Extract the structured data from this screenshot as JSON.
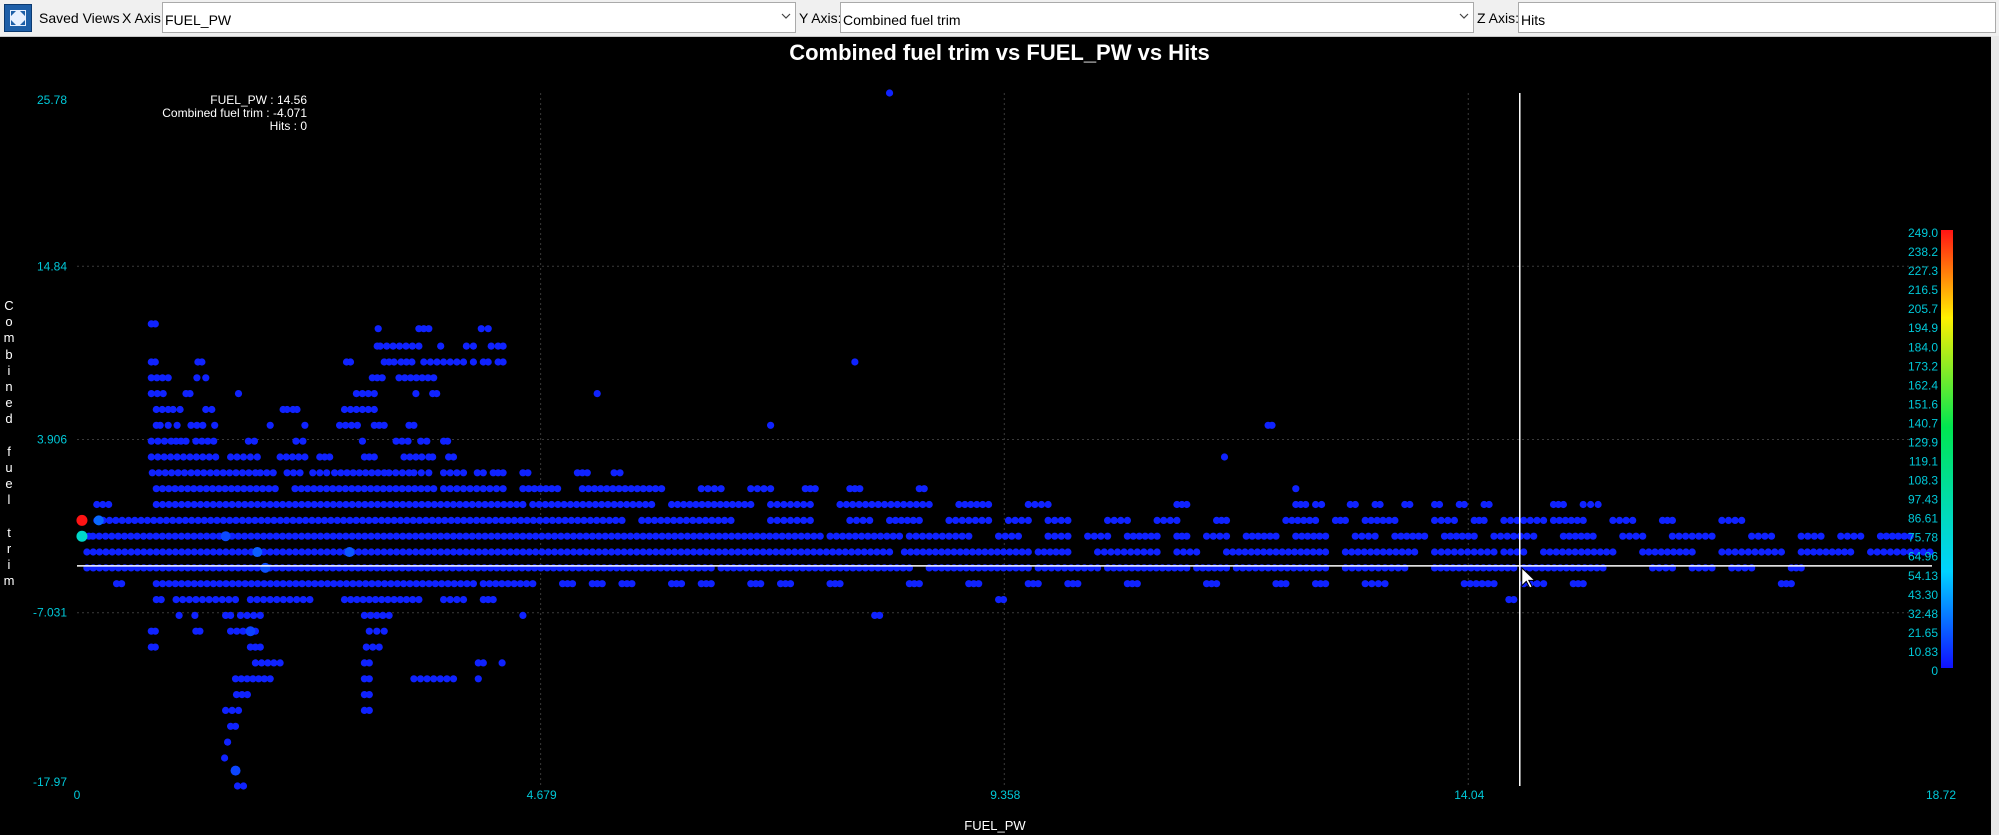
{
  "toolbar": {
    "icon": "expand-icon",
    "saved_views_label": "Saved Views",
    "x_axis_label": "X Axis:",
    "x_axis_value": "FUEL_PW",
    "y_axis_label": "Y Axis:",
    "y_axis_value": "Combined fuel trim",
    "z_axis_label": "Z Axis:",
    "z_axis_value": "Hits"
  },
  "readout": {
    "x_line": "FUEL_PW : 14.56",
    "y_line": "Combined fuel trim : -4.071",
    "z_line": "Hits : 0"
  },
  "colors": {
    "background": "#000000",
    "tick_label": "#00c8d8",
    "point_low": "#1010ff",
    "point_high": "#ff1010",
    "crosshair": "#ffffff"
  },
  "chart_data": {
    "type": "scatter",
    "title": "Combined fuel trim vs FUEL_PW vs Hits",
    "xlabel": "FUEL_PW",
    "ylabel": "Combined fuel trim",
    "zlabel": "Hits",
    "xlim": [
      0,
      18.72
    ],
    "ylim": [
      -17.97,
      25.78
    ],
    "x_ticks": [
      "0",
      "4.679",
      "9.358",
      "14.04",
      "18.72"
    ],
    "y_ticks": [
      "25.78",
      "14.84",
      "3.906",
      "-7.031",
      "-17.97"
    ],
    "color_scale_labels": [
      "249.0",
      "238.2",
      "227.3",
      "216.5",
      "205.7",
      "194.9",
      "184.0",
      "173.2",
      "162.4",
      "151.6",
      "140.7",
      "129.9",
      "119.1",
      "108.3",
      "97.43",
      "86.61",
      "75.78",
      "64.96",
      "54.13",
      "43.30",
      "32.48",
      "21.65",
      "10.83",
      "0"
    ],
    "z_range": [
      0,
      249.0
    ],
    "crosshair": {
      "x": 14.56,
      "y": -4.071
    },
    "grid": true,
    "bands": [
      {
        "y": 11.2,
        "z": 5,
        "segs": [
          [
            0.75,
            0.79
          ]
        ]
      },
      {
        "y": 9.8,
        "z": 5,
        "segs": [
          [
            3.03,
            3.05
          ],
          [
            3.06,
            3.45
          ],
          [
            3.67,
            3.7
          ],
          [
            3.93,
            4.0
          ],
          [
            4.18,
            4.2
          ],
          [
            4.25,
            4.3
          ]
        ]
      },
      {
        "y": 10.9,
        "z": 5,
        "segs": [
          [
            3.04,
            3.07
          ],
          [
            3.45,
            3.55
          ],
          [
            4.08,
            4.15
          ]
        ]
      },
      {
        "y": 8.8,
        "z": 5,
        "segs": [
          [
            0.75,
            0.79
          ],
          [
            1.22,
            1.26
          ],
          [
            2.72,
            2.76
          ],
          [
            3.1,
            3.2
          ],
          [
            3.27,
            3.38
          ],
          [
            3.5,
            3.9
          ],
          [
            4.0,
            4.03
          ],
          [
            4.1,
            4.15
          ],
          [
            4.25,
            4.3
          ]
        ]
      },
      {
        "y": 7.8,
        "z": 5,
        "segs": [
          [
            0.75,
            0.92
          ],
          [
            1.21,
            1.3
          ],
          [
            2.98,
            3.08
          ],
          [
            3.25,
            3.6
          ]
        ]
      },
      {
        "y": 6.8,
        "z": 5,
        "segs": [
          [
            0.75,
            0.87
          ],
          [
            1.1,
            1.14
          ],
          [
            1.63,
            1.66
          ],
          [
            2.82,
            3.0
          ],
          [
            3.42,
            3.45
          ],
          [
            3.59,
            3.63
          ],
          [
            5.25,
            5.28
          ]
        ]
      },
      {
        "y": 5.8,
        "z": 5,
        "segs": [
          [
            0.8,
            0.92
          ],
          [
            0.97,
            1.04
          ],
          [
            1.3,
            1.36
          ],
          [
            2.08,
            2.12
          ],
          [
            2.18,
            2.22
          ],
          [
            2.7,
            3.0
          ]
        ]
      },
      {
        "y": 4.8,
        "z": 5,
        "segs": [
          [
            0.8,
            0.84
          ],
          [
            0.92,
            1.01
          ],
          [
            1.15,
            1.27
          ],
          [
            1.39,
            1.42
          ],
          [
            1.95,
            1.97
          ],
          [
            2.3,
            2.32
          ],
          [
            2.65,
            2.83
          ],
          [
            3.0,
            3.1
          ],
          [
            3.35,
            3.4
          ],
          [
            7.0,
            7.02
          ],
          [
            12.02,
            12.06
          ]
        ]
      },
      {
        "y": 3.8,
        "z": 5,
        "segs": [
          [
            0.75,
            0.95
          ],
          [
            1.0,
            1.1
          ],
          [
            1.2,
            1.38
          ],
          [
            1.73,
            1.79
          ],
          [
            2.21,
            2.28
          ],
          [
            2.88,
            2.9
          ],
          [
            3.22,
            3.34
          ],
          [
            3.47,
            3.53
          ],
          [
            3.7,
            3.74
          ]
        ]
      },
      {
        "y": 2.8,
        "z": 5,
        "segs": [
          [
            0.75,
            1.4
          ],
          [
            1.55,
            1.68
          ],
          [
            1.75,
            1.82
          ],
          [
            2.05,
            2.3
          ],
          [
            2.45,
            2.55
          ],
          [
            2.9,
            3.0
          ],
          [
            3.3,
            3.48
          ],
          [
            3.55,
            3.59
          ],
          [
            3.75,
            3.8
          ],
          [
            11.58,
            11.6
          ]
        ]
      },
      {
        "y": 1.8,
        "z": 5,
        "segs": [
          [
            0.76,
            1.8
          ],
          [
            1.85,
            1.98
          ],
          [
            2.12,
            2.25
          ],
          [
            2.38,
            2.52
          ],
          [
            2.6,
            3.1
          ],
          [
            3.15,
            3.35
          ],
          [
            3.4,
            3.55
          ],
          [
            3.7,
            3.9
          ],
          [
            4.04,
            4.1
          ],
          [
            4.2,
            4.3
          ],
          [
            4.5,
            4.55
          ],
          [
            5.05,
            5.15
          ],
          [
            5.42,
            5.48
          ]
        ]
      },
      {
        "y": 0.8,
        "z": 5,
        "segs": [
          [
            0.8,
            2.0
          ],
          [
            2.2,
            3.6
          ],
          [
            3.7,
            4.3
          ],
          [
            4.5,
            4.85
          ],
          [
            5.1,
            5.9
          ],
          [
            6.3,
            6.5
          ],
          [
            6.8,
            7.0
          ],
          [
            7.35,
            7.45
          ],
          [
            7.8,
            7.9
          ],
          [
            8.5,
            8.55
          ],
          [
            12.3,
            12.32
          ]
        ]
      },
      {
        "y": -0.2,
        "z": 5,
        "segs": [
          [
            0.2,
            0.32
          ],
          [
            0.8,
            4.5
          ],
          [
            4.6,
            5.8
          ],
          [
            6.0,
            6.8
          ],
          [
            7.0,
            7.4
          ],
          [
            7.7,
            8.6
          ],
          [
            8.9,
            9.2
          ],
          [
            9.6,
            9.8
          ],
          [
            11.1,
            11.2
          ],
          [
            12.3,
            12.4
          ],
          [
            12.5,
            12.56
          ],
          [
            12.85,
            12.9
          ],
          [
            13.1,
            13.15
          ],
          [
            13.4,
            13.45
          ],
          [
            13.7,
            13.75
          ],
          [
            13.95,
            14.0
          ],
          [
            14.2,
            14.25
          ],
          [
            14.9,
            15.0
          ],
          [
            15.2,
            15.35
          ]
        ]
      },
      {
        "y": -1.2,
        "z": 5,
        "segs": [
          [
            0.2,
            5.5
          ],
          [
            5.7,
            6.6
          ],
          [
            7.0,
            7.4
          ],
          [
            7.8,
            8.0
          ],
          [
            8.2,
            8.5
          ],
          [
            8.8,
            9.2
          ],
          [
            9.4,
            9.6
          ],
          [
            9.8,
            10.0
          ],
          [
            10.4,
            10.6
          ],
          [
            10.9,
            11.1
          ],
          [
            11.5,
            11.6
          ],
          [
            12.2,
            12.5
          ],
          [
            12.7,
            12.8
          ],
          [
            13.0,
            13.3
          ],
          [
            13.7,
            13.9
          ],
          [
            14.1,
            14.2
          ],
          [
            14.4,
            14.8
          ],
          [
            14.9,
            15.2
          ],
          [
            15.5,
            15.7
          ],
          [
            16.0,
            16.1
          ],
          [
            16.6,
            16.8
          ]
        ]
      },
      {
        "y": -2.2,
        "z": 5,
        "segs": [
          [
            0.05,
            0.12
          ],
          [
            0.16,
            7.5
          ],
          [
            7.6,
            8.3
          ],
          [
            8.4,
            9.0
          ],
          [
            9.3,
            9.5
          ],
          [
            9.8,
            10.0
          ],
          [
            10.2,
            10.4
          ],
          [
            10.6,
            10.9
          ],
          [
            11.1,
            11.2
          ],
          [
            11.4,
            11.6
          ],
          [
            11.8,
            12.1
          ],
          [
            12.3,
            12.6
          ],
          [
            12.9,
            13.1
          ],
          [
            13.3,
            13.6
          ],
          [
            13.8,
            14.1
          ],
          [
            14.3,
            14.7
          ],
          [
            15.0,
            15.3
          ],
          [
            15.6,
            15.8
          ],
          [
            16.1,
            16.5
          ],
          [
            16.9,
            17.1
          ],
          [
            17.4,
            17.6
          ],
          [
            17.8,
            18.0
          ],
          [
            18.2,
            18.5
          ]
        ]
      },
      {
        "y": -3.2,
        "z": 5,
        "segs": [
          [
            0.1,
            8.2
          ],
          [
            8.35,
            9.6
          ],
          [
            9.7,
            10.0
          ],
          [
            10.3,
            10.9
          ],
          [
            11.1,
            11.3
          ],
          [
            11.6,
            12.6
          ],
          [
            12.8,
            13.5
          ],
          [
            13.7,
            14.3
          ],
          [
            14.4,
            14.6
          ],
          [
            14.8,
            15.5
          ],
          [
            15.8,
            16.3
          ],
          [
            16.6,
            17.2
          ],
          [
            17.4,
            17.9
          ],
          [
            18.1,
            18.7
          ]
        ]
      },
      {
        "y": -4.2,
        "z": 5,
        "segs": [
          [
            0.1,
            6.4
          ],
          [
            6.5,
            8.4
          ],
          [
            8.6,
            9.6
          ],
          [
            9.7,
            10.3
          ],
          [
            10.4,
            11.2
          ],
          [
            11.3,
            11.6
          ],
          [
            11.7,
            12.6
          ],
          [
            12.8,
            13.4
          ],
          [
            13.7,
            14.5
          ],
          [
            14.6,
            15.4
          ],
          [
            15.9,
            16.1
          ],
          [
            16.3,
            16.5
          ],
          [
            16.7,
            16.9
          ],
          [
            17.3,
            17.4
          ]
        ]
      },
      {
        "y": -5.2,
        "z": 5,
        "segs": [
          [
            0.4,
            0.45
          ],
          [
            0.8,
            4.0
          ],
          [
            4.1,
            4.6
          ],
          [
            4.9,
            5.0
          ],
          [
            5.2,
            5.3
          ],
          [
            5.5,
            5.6
          ],
          [
            6.0,
            6.1
          ],
          [
            6.3,
            6.4
          ],
          [
            6.8,
            6.9
          ],
          [
            7.1,
            7.2
          ],
          [
            7.6,
            7.7
          ],
          [
            8.4,
            8.5
          ],
          [
            9.0,
            9.1
          ],
          [
            9.6,
            9.7
          ],
          [
            10.0,
            10.1
          ],
          [
            10.6,
            10.7
          ],
          [
            11.4,
            11.5
          ],
          [
            12.1,
            12.2
          ],
          [
            12.5,
            12.6
          ],
          [
            13.0,
            13.2
          ],
          [
            14.0,
            14.3
          ],
          [
            14.6,
            14.8
          ],
          [
            15.1,
            15.2
          ],
          [
            17.2,
            17.3
          ]
        ]
      },
      {
        "y": -6.2,
        "z": 5,
        "segs": [
          [
            0.8,
            0.85
          ],
          [
            1.0,
            1.6
          ],
          [
            1.75,
            2.35
          ],
          [
            2.7,
            3.45
          ],
          [
            3.7,
            3.9
          ],
          [
            4.1,
            4.2
          ],
          [
            9.3,
            9.35
          ],
          [
            14.45,
            14.5
          ]
        ]
      },
      {
        "y": -7.2,
        "z": 5,
        "segs": [
          [
            1.03,
            1.06
          ],
          [
            1.19,
            1.2
          ],
          [
            1.5,
            1.55
          ],
          [
            1.65,
            1.85
          ],
          [
            2.9,
            3.15
          ],
          [
            4.5,
            4.52
          ],
          [
            8.05,
            8.1
          ]
        ]
      },
      {
        "y": -8.2,
        "z": 5,
        "segs": [
          [
            0.75,
            0.79
          ],
          [
            1.2,
            1.24
          ],
          [
            1.55,
            1.8
          ],
          [
            2.95,
            3.1
          ]
        ]
      },
      {
        "y": -9.2,
        "z": 5,
        "segs": [
          [
            0.75,
            0.79
          ],
          [
            1.75,
            1.85
          ],
          [
            2.92,
            3.05
          ]
        ]
      },
      {
        "y": -10.2,
        "z": 5,
        "segs": [
          [
            1.8,
            2.05
          ],
          [
            2.9,
            2.95
          ],
          [
            4.05,
            4.1
          ],
          [
            4.29,
            4.32
          ]
        ]
      },
      {
        "y": -11.2,
        "z": 5,
        "segs": [
          [
            1.6,
            1.95
          ],
          [
            2.9,
            2.95
          ],
          [
            3.4,
            3.8
          ],
          [
            4.05,
            4.08
          ]
        ]
      },
      {
        "y": -12.2,
        "z": 5,
        "segs": [
          [
            1.61,
            1.72
          ],
          [
            2.9,
            2.95
          ]
        ]
      },
      {
        "y": -13.2,
        "z": 5,
        "segs": [
          [
            1.5,
            1.63
          ],
          [
            2.9,
            2.95
          ]
        ]
      },
      {
        "y": -14.2,
        "z": 5,
        "segs": [
          [
            1.55,
            1.6
          ]
        ]
      },
      {
        "y": -15.2,
        "z": 5,
        "segs": [
          [
            1.52,
            1.55
          ]
        ]
      },
      {
        "y": -16.2,
        "z": 5,
        "segs": [
          [
            1.49,
            1.52
          ]
        ]
      },
      {
        "y": -17.97,
        "z": 5,
        "segs": [
          [
            1.62,
            1.68
          ]
        ]
      }
    ],
    "points": [
      {
        "x": 8.2,
        "y": 25.78,
        "z": 5
      },
      {
        "x": 7.85,
        "y": 8.8,
        "z": 5
      },
      {
        "x": 0.05,
        "y": -1.2,
        "z": 249
      },
      {
        "x": 0.05,
        "y": -2.2,
        "z": 80
      },
      {
        "x": 0.22,
        "y": -1.2,
        "z": 25
      },
      {
        "x": 1.82,
        "y": -3.2,
        "z": 22
      },
      {
        "x": 1.9,
        "y": -4.2,
        "z": 18
      },
      {
        "x": 2.75,
        "y": -3.2,
        "z": 20
      },
      {
        "x": 1.6,
        "y": -17.0,
        "z": 15
      },
      {
        "x": 1.75,
        "y": -8.2,
        "z": 14
      },
      {
        "x": 1.5,
        "y": -2.2,
        "z": 16
      }
    ]
  }
}
